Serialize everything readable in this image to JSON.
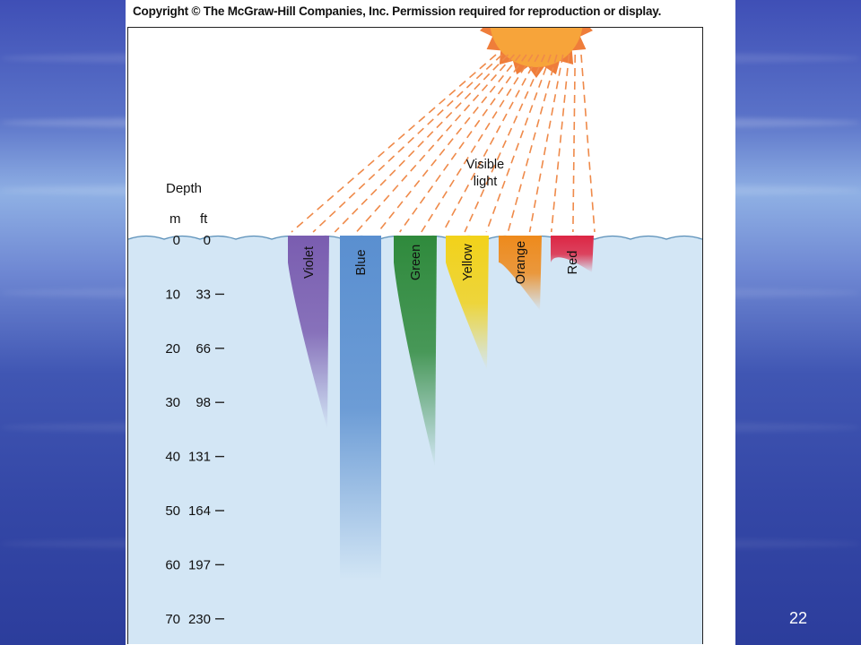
{
  "copyright": "Copyright © The McGraw-Hill Companies, Inc. Permission required for reproduction or display.",
  "visible_light_label": [
    "Visible",
    "light"
  ],
  "depth_axis": {
    "title": "Depth",
    "meter_unit": "m",
    "feet_unit": "ft",
    "ticks": [
      {
        "m": "0",
        "ft": "0"
      },
      {
        "m": "10",
        "ft": "33"
      },
      {
        "m": "20",
        "ft": "66"
      },
      {
        "m": "30",
        "ft": "98"
      },
      {
        "m": "40",
        "ft": "131"
      },
      {
        "m": "50",
        "ft": "164"
      },
      {
        "m": "60",
        "ft": "197"
      },
      {
        "m": "70",
        "ft": "230"
      }
    ]
  },
  "bands": [
    {
      "name": "Violet",
      "color": "#7a5db0",
      "depth_m": 35,
      "tapered": true
    },
    {
      "name": "Blue",
      "color": "#5a8fd0",
      "depth_m": 63,
      "tapered": false
    },
    {
      "name": "Green",
      "color": "#2f8a3c",
      "depth_m": 42,
      "tapered": true
    },
    {
      "name": "Yellow",
      "color": "#f2d21a",
      "depth_m": 24,
      "tapered": true
    },
    {
      "name": "Orange",
      "color": "#ee8a1c",
      "depth_m": 13,
      "tapered": true
    },
    {
      "name": "Red",
      "color": "#dd2644",
      "depth_m": 6,
      "tapered": true
    }
  ],
  "colors": {
    "water": "#d3e6f5",
    "sun": "#f7a43a",
    "ray": "#ef8a4a"
  },
  "page_number": "22"
}
